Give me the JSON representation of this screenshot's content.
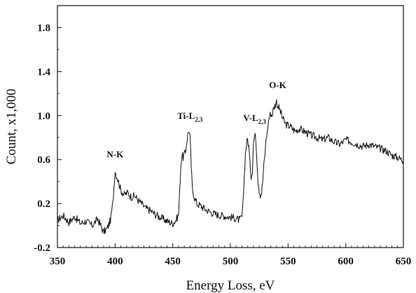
{
  "chart_data": {
    "type": "line",
    "xlabel": "Energy Loss,  eV",
    "ylabel": "Count,  x1,000",
    "xlim": [
      350,
      650
    ],
    "ylim": [
      -0.2,
      2.0
    ],
    "x_ticks": [
      350,
      400,
      450,
      500,
      550,
      600,
      650
    ],
    "y_ticks": [
      -0.2,
      0.2,
      0.6,
      1.0,
      1.4,
      1.8
    ],
    "y_tick_labels": [
      "-0.2",
      "0.2",
      "0.6",
      "1.0",
      "1.4",
      "1.8"
    ],
    "grid": false,
    "line_color": "#111111",
    "annotations": [
      {
        "main": "N-K",
        "sub": "",
        "x": 400,
        "y": 0.62
      },
      {
        "main": "Ti-L",
        "sub": "2,3",
        "x": 465,
        "y": 0.97
      },
      {
        "main": "V-L",
        "sub": "2,3",
        "x": 521,
        "y": 0.95
      },
      {
        "main": "O-K",
        "sub": "",
        "x": 541,
        "y": 1.25
      }
    ],
    "series": [
      {
        "x": [
          350,
          355,
          360,
          365,
          370,
          375,
          380,
          385,
          390,
          393,
          396,
          398,
          399,
          400,
          401,
          403,
          405,
          408,
          411,
          414,
          417,
          420,
          423,
          426,
          430,
          435,
          440,
          445,
          450,
          453,
          455,
          456,
          457,
          458,
          459,
          460,
          461,
          462,
          463,
          464,
          465,
          466,
          467,
          469,
          471,
          474,
          478,
          483,
          488,
          493,
          498,
          503,
          508,
          510,
          511,
          512,
          513,
          514,
          515,
          516,
          517,
          518,
          519,
          520,
          521,
          522,
          523,
          524,
          525,
          526,
          527,
          528,
          529,
          530,
          531,
          532,
          533,
          534,
          535,
          536,
          537,
          538,
          539,
          540,
          541,
          542,
          543,
          545,
          548,
          552,
          556,
          560,
          565,
          570,
          575,
          580,
          585,
          590,
          595,
          600,
          605,
          610,
          615,
          620,
          625,
          630,
          635,
          640,
          645,
          650
        ],
        "y": [
          0.05,
          0.09,
          0.03,
          0.08,
          0.02,
          0.04,
          0.0,
          0.06,
          -0.06,
          -0.03,
          0.05,
          0.2,
          0.35,
          0.5,
          0.46,
          0.4,
          0.32,
          0.28,
          0.3,
          0.26,
          0.27,
          0.23,
          0.2,
          0.16,
          0.14,
          0.1,
          0.07,
          0.04,
          0.02,
          0.05,
          0.1,
          0.3,
          0.55,
          0.64,
          0.62,
          0.65,
          0.66,
          0.75,
          0.83,
          0.87,
          0.8,
          0.55,
          0.33,
          0.25,
          0.2,
          0.18,
          0.15,
          0.12,
          0.1,
          0.09,
          0.08,
          0.07,
          0.05,
          0.08,
          0.2,
          0.45,
          0.65,
          0.75,
          0.78,
          0.72,
          0.55,
          0.45,
          0.5,
          0.75,
          0.82,
          0.8,
          0.6,
          0.4,
          0.32,
          0.28,
          0.3,
          0.4,
          0.55,
          0.65,
          0.8,
          0.85,
          0.95,
          1.0,
          1.02,
          1.0,
          1.05,
          1.08,
          1.1,
          1.13,
          1.09,
          1.07,
          1.05,
          0.98,
          0.92,
          0.9,
          0.86,
          0.88,
          0.85,
          0.82,
          0.8,
          0.78,
          0.8,
          0.76,
          0.74,
          0.78,
          0.76,
          0.74,
          0.72,
          0.74,
          0.72,
          0.7,
          0.68,
          0.64,
          0.62,
          0.59
        ]
      }
    ]
  }
}
